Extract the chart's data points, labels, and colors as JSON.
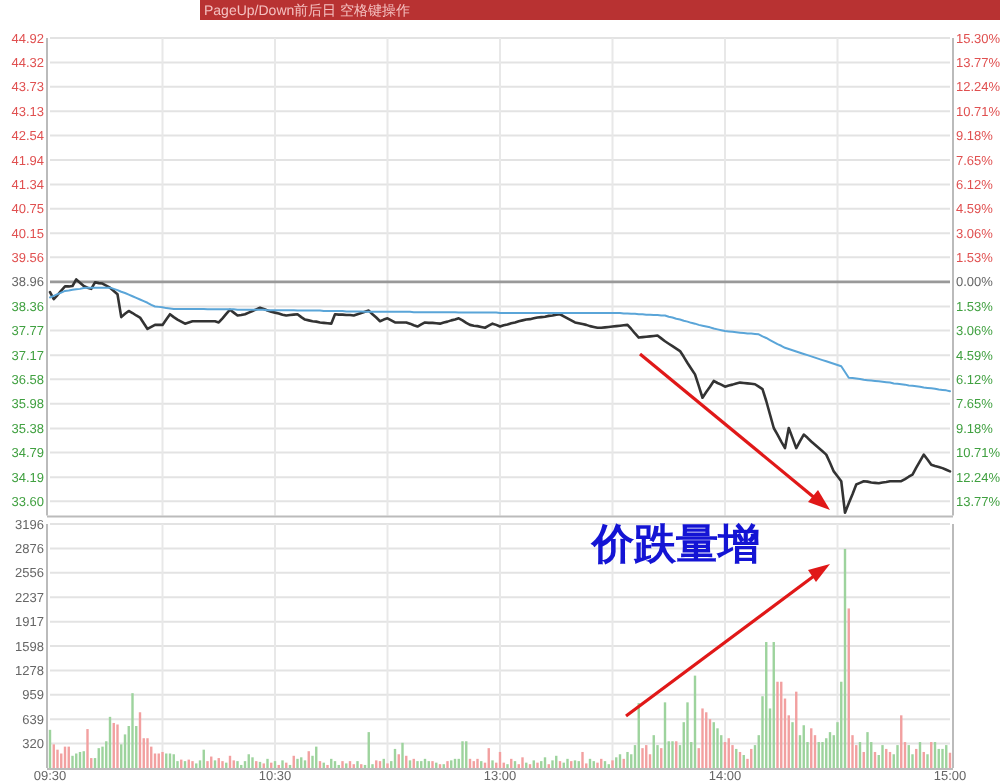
{
  "chart_data": [
    {
      "type": "line",
      "annotations": [
        "PageUp/Down前后日 空格键操作",
        "价跌量增"
      ],
      "categories": [
        null,
        null,
        null,
        null,
        null,
        null,
        null,
        null,
        null,
        null,
        null,
        null,
        null,
        null,
        null,
        null,
        null,
        null,
        null,
        null,
        null,
        null,
        null,
        null,
        null,
        null,
        null,
        null,
        null,
        null,
        null,
        null,
        null,
        null,
        null,
        null,
        null,
        null,
        null,
        null,
        null,
        null,
        null,
        null,
        null,
        null,
        null,
        null,
        null,
        null,
        null,
        null,
        null,
        null,
        null,
        null,
        null,
        null,
        null,
        null,
        null,
        null,
        null,
        null,
        null,
        null,
        null,
        null,
        null,
        null,
        null,
        null,
        null,
        null,
        null,
        null,
        null,
        null,
        null,
        null,
        null,
        null,
        null,
        null,
        null,
        null,
        null,
        null,
        null,
        null,
        null,
        null,
        null,
        null,
        null,
        null,
        null,
        null,
        null,
        null,
        null,
        null,
        null,
        null,
        null,
        null,
        null,
        null,
        null,
        null,
        null,
        null,
        null,
        null,
        null,
        null,
        null,
        null,
        null,
        null,
        null,
        null,
        null,
        null,
        null,
        null,
        null,
        null,
        null,
        null,
        null,
        null,
        null,
        null,
        null,
        null,
        null,
        null,
        null,
        null,
        null,
        null,
        null,
        null,
        null,
        null,
        null,
        null,
        null,
        null,
        null,
        null,
        null,
        null,
        null,
        null,
        null,
        null,
        null,
        null,
        null,
        null,
        null,
        null,
        null,
        null,
        null,
        null,
        null,
        null,
        null,
        null,
        null,
        null,
        null,
        null,
        null,
        null,
        null,
        null,
        null,
        null,
        null,
        null,
        null,
        null,
        null,
        null,
        null,
        null,
        null,
        null,
        null,
        null,
        null,
        null,
        null,
        null,
        null,
        null,
        null,
        null,
        null,
        null,
        null,
        null,
        null,
        null,
        null,
        null,
        null,
        null,
        null,
        null,
        null,
        null,
        null,
        null,
        null,
        null,
        null,
        null,
        null,
        null,
        null,
        null,
        null,
        null,
        null,
        null,
        null,
        null,
        null,
        null,
        null,
        null,
        null,
        null,
        null,
        null,
        null
      ],
      "ylim": [
        33.25,
        44.92
      ],
      "yticks": [
        44.92,
        44.32,
        43.73,
        43.13,
        42.54,
        41.94,
        41.34,
        40.75,
        40.15,
        39.56,
        38.96,
        38.36,
        37.77,
        37.17,
        36.58,
        35.98,
        35.38,
        34.79,
        34.19,
        {
          "value": 33.6,
          "label": "33.60"
        }
      ],
      "y2lim": [
        -14.66,
        15.3
      ],
      "y2ticks": [
        {
          "value": 15.3,
          "label": "15.30%"
        },
        {
          "value": 13.77,
          "label": "13.77%"
        },
        {
          "value": 12.24,
          "label": "12.24%"
        },
        {
          "value": 10.71,
          "label": "10.71%"
        },
        {
          "value": 9.18,
          "label": "9.18%"
        },
        {
          "value": 7.65,
          "label": "7.65%"
        },
        {
          "value": 6.12,
          "label": "6.12%"
        },
        {
          "value": 4.59,
          "label": "4.59%"
        },
        {
          "value": 3.06,
          "label": "3.06%"
        },
        {
          "value": 1.53,
          "label": "1.53%"
        },
        {
          "value": 0,
          "label": "0.00%"
        },
        {
          "value": -1.53,
          "label": "1.53%"
        },
        {
          "value": -3.06,
          "label": "3.06%"
        },
        {
          "value": -4.59,
          "label": "4.59%"
        },
        {
          "value": -6.12,
          "label": "6.12%"
        },
        {
          "value": -7.65,
          "label": "7.65%"
        },
        {
          "value": -9.18,
          "label": "9.18%"
        },
        {
          "value": -10.71,
          "label": "10.71%"
        },
        {
          "value": -12.24,
          "label": "12.24%"
        },
        {
          "value": -13.77,
          "label": "13.77%"
        }
      ],
      "grid": true,
      "tick_labels": "y",
      "ref_lines": [
        {
          "axis": "y",
          "value": 38.96,
          "color": "#999999"
        }
      ],
      "series": [
        {
          "color": "#333333",
          "values": [
            38.71,
            38.54,
            38.64,
            38.75,
            38.85,
            38.85,
            38.86,
            39.02,
            38.94,
            38.86,
            38.82,
            38.79,
            38.95,
            38.93,
            38.92,
            38.87,
            38.82,
            38.74,
            38.66,
            38.1,
            38.18,
            38.25,
            38.2,
            38.14,
            38.09,
            37.95,
            37.81,
            37.86,
            37.91,
            37.91,
            37.91,
            38.04,
            38.17,
            38.1,
            38.04,
            37.99,
            37.94,
            37.97,
            38.0,
            38.0,
            38.0,
            38.0,
            38.0,
            38.0,
            38.0,
            37.97,
            38.07,
            38.18,
            38.28,
            38.21,
            38.14,
            38.15,
            38.17,
            38.21,
            38.25,
            38.29,
            38.33,
            38.3,
            38.26,
            38.23,
            38.21,
            38.19,
            38.16,
            38.14,
            38.15,
            38.16,
            38.17,
            38.1,
            38.04,
            38.02,
            38.0,
            37.99,
            37.97,
            37.96,
            37.95,
            37.94,
            38.17,
            38.16,
            38.16,
            38.15,
            38.15,
            38.14,
            38.17,
            38.2,
            38.23,
            38.26,
            38.17,
            38.09,
            38.0,
            38.04,
            38.07,
            38.02,
            37.97,
            37.97,
            37.97,
            37.97,
            37.94,
            37.9,
            37.87,
            37.92,
            37.97,
            37.96,
            37.96,
            37.95,
            37.94,
            37.97,
            37.99,
            38.02,
            38.04,
            38.07,
            38.02,
            37.96,
            37.91,
            37.89,
            37.88,
            37.86,
            37.84,
            37.89,
            37.94,
            37.91,
            37.87,
            37.9,
            37.92,
            37.95,
            37.97,
            38.0,
            38.02,
            38.04,
            38.05,
            38.07,
            38.09,
            38.1,
            38.11,
            38.13,
            38.14,
            38.16,
            38.17,
            38.12,
            38.07,
            38.02,
            37.97,
            37.95,
            37.93,
            37.91,
            37.88,
            37.86,
            37.84,
            37.84,
            37.85,
            37.86,
            37.87,
            37.88,
            37.89,
            37.9,
            37.91,
            37.81,
            37.7,
            37.6,
            37.61,
            37.62,
            37.63,
            37.64,
            37.65,
            37.58,
            37.51,
            37.45,
            37.39,
            37.33,
            37.27,
            37.13,
            36.98,
            36.84,
            36.7,
            36.42,
            36.13,
            36.27,
            36.4,
            36.54,
            36.49,
            36.45,
            36.4,
            36.43,
            36.45,
            36.48,
            36.5,
            36.49,
            36.48,
            36.47,
            36.46,
            36.4,
            36.34,
            36.05,
            35.72,
            35.39,
            35.23,
            35.06,
            34.9,
            35.39,
            35.15,
            34.9,
            35.07,
            35.23,
            35.15,
            35.06,
            34.98,
            34.9,
            34.82,
            34.74,
            34.54,
            34.33,
            34.21,
            34.09,
            33.32,
            33.55,
            33.77,
            34.01,
            34.05,
            34.09,
            34.08,
            34.06,
            34.05,
            34.04,
            34.06,
            34.07,
            34.09,
            34.09,
            34.09,
            34.09,
            34.14,
            34.2,
            34.25,
            34.42,
            34.58,
            34.74,
            34.62,
            34.49,
            34.46,
            34.44,
            34.41,
            34.37,
            34.33
          ]
        },
        {
          "color": "#5aa5d8",
          "values": [
            38.58,
            38.62,
            38.66,
            38.7,
            38.74,
            38.75,
            38.77,
            38.78,
            38.79,
            38.81,
            38.82,
            38.82,
            38.82,
            38.82,
            38.82,
            38.82,
            38.82,
            38.79,
            38.76,
            38.72,
            38.69,
            38.65,
            38.61,
            38.57,
            38.53,
            38.49,
            38.45,
            38.4,
            38.36,
            38.35,
            38.34,
            38.32,
            38.31,
            38.3,
            38.3,
            38.3,
            38.3,
            38.3,
            38.3,
            38.3,
            38.3,
            38.3,
            38.29,
            38.29,
            38.29,
            38.29,
            38.29,
            38.29,
            38.29,
            38.29,
            38.28,
            38.28,
            38.28,
            38.28,
            38.28,
            38.28,
            38.28,
            38.28,
            38.27,
            38.27,
            38.27,
            38.27,
            38.27,
            38.27,
            38.27,
            38.27,
            38.26,
            38.26,
            38.26,
            38.26,
            38.26,
            38.26,
            38.26,
            38.25,
            38.25,
            38.25,
            38.25,
            38.25,
            38.25,
            38.24,
            38.24,
            38.24,
            38.24,
            38.24,
            38.23,
            38.23,
            38.23,
            38.23,
            38.23,
            38.23,
            38.23,
            38.23,
            38.23,
            38.23,
            38.23,
            38.23,
            38.23,
            38.22,
            38.22,
            38.22,
            38.22,
            38.22,
            38.22,
            38.22,
            38.22,
            38.22,
            38.22,
            38.22,
            38.22,
            38.21,
            38.21,
            38.21,
            38.21,
            38.21,
            38.21,
            38.21,
            38.21,
            38.21,
            38.21,
            38.21,
            38.2,
            38.2,
            38.2,
            38.2,
            38.2,
            38.2,
            38.2,
            38.2,
            38.2,
            38.2,
            38.2,
            38.2,
            38.2,
            38.2,
            38.2,
            38.2,
            38.2,
            38.2,
            38.2,
            38.2,
            38.2,
            38.2,
            38.2,
            38.2,
            38.2,
            38.2,
            38.2,
            38.2,
            38.2,
            38.2,
            38.2,
            38.2,
            38.2,
            38.19,
            38.19,
            38.18,
            38.18,
            38.17,
            38.17,
            38.16,
            38.16,
            38.15,
            38.15,
            38.14,
            38.14,
            38.11,
            38.09,
            38.06,
            38.04,
            38.01,
            37.99,
            37.96,
            37.94,
            37.91,
            37.89,
            37.87,
            37.85,
            37.82,
            37.8,
            37.78,
            37.76,
            37.75,
            37.74,
            37.73,
            37.72,
            37.71,
            37.7,
            37.7,
            37.69,
            37.68,
            37.63,
            37.59,
            37.54,
            37.49,
            37.44,
            37.4,
            37.35,
            37.32,
            37.29,
            37.26,
            37.23,
            37.2,
            37.17,
            37.14,
            37.11,
            37.08,
            37.05,
            37.02,
            36.99,
            36.96,
            36.93,
            36.9,
            36.76,
            36.62,
            36.61,
            36.6,
            36.59,
            36.57,
            36.56,
            36.55,
            36.54,
            36.53,
            36.52,
            36.51,
            36.5,
            36.48,
            36.47,
            36.46,
            36.45,
            36.43,
            36.42,
            36.41,
            36.4,
            36.38,
            36.37,
            36.36,
            36.35,
            36.33,
            36.32,
            36.31,
            36.29
          ]
        }
      ]
    },
    {
      "type": "bar",
      "categories": [
        "09:30",
        null,
        null,
        null,
        null,
        null,
        null,
        null,
        null,
        null,
        null,
        null,
        null,
        null,
        null,
        null,
        null,
        null,
        null,
        null,
        null,
        null,
        null,
        null,
        null,
        null,
        null,
        null,
        null,
        null,
        null,
        null,
        null,
        null,
        null,
        null,
        null,
        null,
        null,
        null,
        null,
        null,
        null,
        null,
        null,
        null,
        null,
        null,
        null,
        null,
        null,
        null,
        null,
        null,
        null,
        null,
        null,
        null,
        null,
        null,
        "10:30",
        null,
        null,
        null,
        null,
        null,
        null,
        null,
        null,
        null,
        null,
        null,
        null,
        null,
        null,
        null,
        null,
        null,
        null,
        null,
        null,
        null,
        null,
        null,
        null,
        null,
        null,
        null,
        null,
        null,
        null,
        null,
        null,
        null,
        null,
        null,
        null,
        null,
        null,
        null,
        null,
        null,
        null,
        null,
        null,
        null,
        null,
        null,
        null,
        null,
        null,
        null,
        null,
        null,
        null,
        null,
        null,
        null,
        null,
        null,
        "13:00",
        null,
        null,
        null,
        null,
        null,
        null,
        null,
        null,
        null,
        null,
        null,
        null,
        null,
        null,
        null,
        null,
        null,
        null,
        null,
        null,
        null,
        null,
        null,
        null,
        null,
        null,
        null,
        null,
        null,
        null,
        null,
        null,
        null,
        null,
        null,
        null,
        null,
        null,
        null,
        null,
        null,
        null,
        null,
        null,
        null,
        null,
        null,
        null,
        null,
        null,
        null,
        null,
        null,
        null,
        null,
        null,
        null,
        null,
        null,
        "14:00",
        null,
        null,
        null,
        null,
        null,
        null,
        null,
        null,
        null,
        null,
        null,
        null,
        null,
        null,
        null,
        null,
        null,
        null,
        null,
        null,
        null,
        null,
        null,
        null,
        null,
        null,
        null,
        null,
        null,
        null,
        null,
        null,
        null,
        null,
        null,
        null,
        null,
        null,
        null,
        null,
        null,
        null,
        null,
        null,
        null,
        null,
        null,
        null,
        null,
        null,
        null,
        null,
        null,
        null,
        null,
        null,
        null,
        null,
        null,
        "15:00"
      ],
      "ylim": [
        0,
        3196
      ],
      "yticks": [
        320,
        639,
        959,
        1278,
        1598,
        1917,
        2237,
        2556,
        2876,
        3196
      ],
      "grid": true,
      "values": [
        500,
        310,
        240,
        190,
        280,
        280,
        160,
        190,
        210,
        220,
        510,
        130,
        130,
        260,
        280,
        350,
        670,
        590,
        570,
        310,
        440,
        550,
        980,
        550,
        730,
        390,
        390,
        280,
        190,
        190,
        210,
        190,
        190,
        180,
        90,
        110,
        90,
        110,
        90,
        60,
        100,
        240,
        90,
        150,
        100,
        130,
        90,
        70,
        160,
        100,
        90,
        40,
        90,
        180,
        140,
        90,
        80,
        60,
        120,
        70,
        90,
        40,
        100,
        70,
        40,
        160,
        120,
        140,
        100,
        220,
        160,
        280,
        90,
        70,
        40,
        120,
        90,
        40,
        90,
        60,
        90,
        50,
        90,
        50,
        40,
        470,
        50,
        100,
        90,
        120,
        60,
        90,
        250,
        180,
        330,
        160,
        100,
        120,
        90,
        90,
        120,
        90,
        90,
        70,
        50,
        50,
        90,
        100,
        120,
        120,
        350,
        350,
        120,
        90,
        120,
        90,
        70,
        260,
        100,
        70,
        210,
        70,
        50,
        120,
        90,
        50,
        140,
        70,
        50,
        100,
        70,
        90,
        140,
        50,
        100,
        160,
        90,
        70,
        120,
        90,
        100,
        90,
        210,
        60,
        120,
        90,
        70,
        120,
        90,
        50,
        100,
        140,
        180,
        120,
        210,
        180,
        300,
        850,
        260,
        300,
        180,
        430,
        300,
        260,
        860,
        350,
        350,
        350,
        300,
        600,
        860,
        340,
        1210,
        260,
        780,
        730,
        640,
        600,
        520,
        430,
        340,
        390,
        300,
        250,
        210,
        170,
        120,
        250,
        300,
        430,
        940,
        1650,
        780,
        1650,
        1130,
        1130,
        910,
        690,
        600,
        1000,
        430,
        560,
        340,
        520,
        430,
        340,
        340,
        390,
        470,
        430,
        600,
        1130,
        2870,
        2090,
        430,
        300,
        340,
        210,
        470,
        340,
        210,
        170,
        300,
        250,
        210,
        180,
        300,
        690,
        340,
        300,
        180,
        250,
        340,
        210,
        180,
        340,
        340,
        250,
        250,
        300,
        200
      ],
      "colors": [
        "#9dd39d",
        "#f2a0a0",
        "#f2a0a0",
        "#f2a0a0",
        "#f2a0a0",
        "#f2a0a0",
        "#9dd39d",
        "#9dd39d",
        "#9dd39d",
        "#9dd39d",
        "#f2a0a0",
        "#f2a0a0",
        "#9dd39d",
        "#9dd39d",
        "#9dd39d",
        "#9dd39d",
        "#9dd39d",
        "#f2a0a0",
        "#f2a0a0",
        "#9dd39d",
        "#9dd39d",
        "#9dd39d",
        "#9dd39d",
        "#9dd39d",
        "#f2a0a0",
        "#f2a0a0",
        "#f2a0a0",
        "#f2a0a0",
        "#f2a0a0",
        "#f2a0a0",
        "#f2a0a0",
        "#9dd39d",
        "#9dd39d",
        "#9dd39d",
        "#9dd39d",
        "#f2a0a0",
        "#9dd39d",
        "#f2a0a0",
        "#f2a0a0",
        "#9dd39d",
        "#9dd39d",
        "#9dd39d",
        "#f2a0a0",
        "#f2a0a0",
        "#9dd39d",
        "#f2a0a0",
        "#f2a0a0",
        "#9dd39d",
        "#f2a0a0",
        "#f2a0a0",
        "#9dd39d",
        "#9dd39d",
        "#9dd39d",
        "#9dd39d",
        "#9dd39d",
        "#f2a0a0",
        "#9dd39d",
        "#f2a0a0",
        "#9dd39d",
        "#f2a0a0",
        "#9dd39d",
        "#f2a0a0",
        "#9dd39d",
        "#f2a0a0",
        "#9dd39d",
        "#f2a0a0",
        "#9dd39d",
        "#9dd39d",
        "#9dd39d",
        "#f2a0a0",
        "#9dd39d",
        "#9dd39d",
        "#f2a0a0",
        "#9dd39d",
        "#f2a0a0",
        "#9dd39d",
        "#9dd39d",
        "#9dd39d",
        "#f2a0a0",
        "#9dd39d",
        "#f2a0a0",
        "#f2a0a0",
        "#9dd39d",
        "#f2a0a0",
        "#9dd39d",
        "#9dd39d",
        "#9dd39d",
        "#f2a0a0",
        "#f2a0a0",
        "#9dd39d",
        "#f2a0a0",
        "#9dd39d",
        "#9dd39d",
        "#f2a0a0",
        "#9dd39d",
        "#f2a0a0",
        "#9dd39d",
        "#f2a0a0",
        "#9dd39d",
        "#9dd39d",
        "#9dd39d",
        "#9dd39d",
        "#f2a0a0",
        "#9dd39d",
        "#f2a0a0",
        "#9dd39d",
        "#f2a0a0",
        "#9dd39d",
        "#9dd39d",
        "#9dd39d",
        "#9dd39d",
        "#9dd39d",
        "#f2a0a0",
        "#f2a0a0",
        "#f2a0a0",
        "#9dd39d",
        "#f2a0a0",
        "#f2a0a0",
        "#9dd39d",
        "#f2a0a0",
        "#f2a0a0",
        "#f2a0a0",
        "#9dd39d",
        "#f2a0a0",
        "#9dd39d",
        "#f2a0a0",
        "#f2a0a0",
        "#9dd39d",
        "#f2a0a0",
        "#9dd39d",
        "#f2a0a0",
        "#9dd39d",
        "#9dd39d",
        "#f2a0a0",
        "#9dd39d",
        "#9dd39d",
        "#f2a0a0",
        "#9dd39d",
        "#9dd39d",
        "#f2a0a0",
        "#9dd39d",
        "#9dd39d",
        "#f2a0a0",
        "#f2a0a0",
        "#9dd39d",
        "#9dd39d",
        "#f2a0a0",
        "#f2a0a0",
        "#9dd39d",
        "#9dd39d",
        "#f2a0a0",
        "#9dd39d",
        "#9dd39d",
        "#f2a0a0",
        "#9dd39d",
        "#9dd39d",
        "#9dd39d",
        "#9dd39d",
        "#f2a0a0",
        "#f2a0a0",
        "#f2a0a0",
        "#9dd39d",
        "#9dd39d",
        "#f2a0a0",
        "#9dd39d",
        "#9dd39d",
        "#9dd39d",
        "#f2a0a0",
        "#9dd39d",
        "#9dd39d",
        "#9dd39d",
        "#9dd39d",
        "#9dd39d",
        "#f2a0a0",
        "#f2a0a0",
        "#f2a0a0",
        "#f2a0a0",
        "#9dd39d",
        "#9dd39d",
        "#9dd39d",
        "#f2a0a0",
        "#f2a0a0",
        "#f2a0a0",
        "#9dd39d",
        "#f2a0a0",
        "#9dd39d",
        "#f2a0a0",
        "#f2a0a0",
        "#9dd39d",
        "#9dd39d",
        "#9dd39d",
        "#9dd39d",
        "#9dd39d",
        "#9dd39d",
        "#f2a0a0",
        "#f2a0a0",
        "#f2a0a0",
        "#f2a0a0",
        "#9dd39d",
        "#f2a0a0",
        "#9dd39d",
        "#9dd39d",
        "#9dd39d",
        "#f2a0a0",
        "#f2a0a0",
        "#9dd39d",
        "#9dd39d",
        "#9dd39d",
        "#9dd39d",
        "#9dd39d",
        "#9dd39d",
        "#9dd39d",
        "#9dd39d",
        "#f2a0a0",
        "#f2a0a0",
        "#f2a0a0",
        "#9dd39d",
        "#f2a0a0",
        "#9dd39d",
        "#9dd39d",
        "#f2a0a0",
        "#9dd39d",
        "#9dd39d",
        "#f2a0a0",
        "#f2a0a0",
        "#9dd39d",
        "#9dd39d",
        "#f2a0a0",
        "#f2a0a0",
        "#9dd39d",
        "#9dd39d",
        "#f2a0a0",
        "#9dd39d",
        "#f2a0a0",
        "#9dd39d",
        "#f2a0a0",
        "#9dd39d",
        "#9dd39d",
        "#9dd39d",
        "#9dd39d",
        "#f2a0a0"
      ]
    }
  ]
}
